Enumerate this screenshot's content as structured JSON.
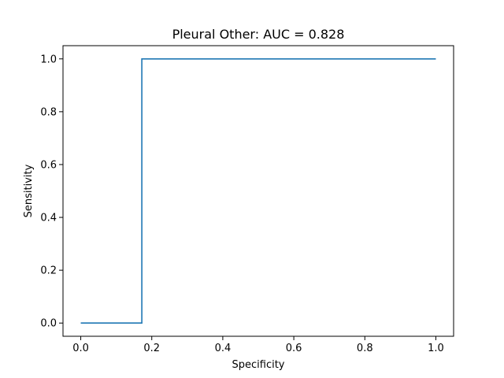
{
  "chart_data": {
    "type": "line",
    "title": "Pleural Other: AUC = 0.828",
    "xlabel": "Specificity",
    "ylabel": "Sensitivity",
    "xlim": [
      -0.05,
      1.05
    ],
    "ylim": [
      -0.05,
      1.05
    ],
    "x_ticks": [
      0.0,
      0.2,
      0.4,
      0.6,
      0.8,
      1.0
    ],
    "x_tick_labels": [
      "0.0",
      "0.2",
      "0.4",
      "0.6",
      "0.8",
      "1.0"
    ],
    "y_ticks": [
      0.0,
      0.2,
      0.4,
      0.6,
      0.8,
      1.0
    ],
    "y_tick_labels": [
      "0.0",
      "0.2",
      "0.4",
      "0.6",
      "0.8",
      "1.0"
    ],
    "grid": false,
    "legend": "none",
    "series": [
      {
        "color": "#1f77b4",
        "x": [
          0.0,
          0.172,
          0.172,
          1.0
        ],
        "y": [
          0.0,
          0.0,
          1.0,
          1.0
        ]
      }
    ]
  }
}
